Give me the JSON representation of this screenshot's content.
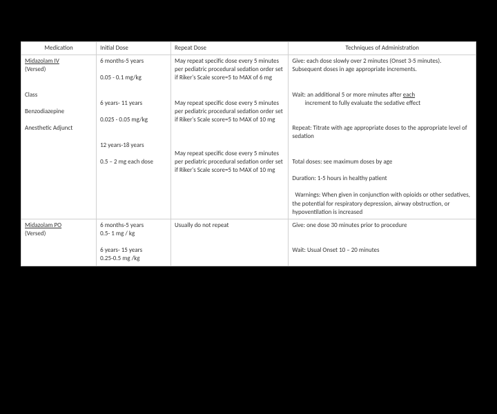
{
  "header": {
    "medication": "Medication",
    "initial_dose": "Initial Dose",
    "repeat_dose": "Repeat Dose",
    "techniques": "Techniques of Administration"
  },
  "row1": {
    "med_name": "Midazolam IV",
    "med_brand": "(Versed)",
    "class_label": "Class",
    "class_1": "Benzodiazepine",
    "class_2": "Anesthetic Adjunct",
    "dose_group1_age": "6 months-5 years",
    "dose_group1_amt": "0.05 - 0.1 mg/kg",
    "dose_group2_age": "6 years- 11 years",
    "dose_group2_amt": "0.025 - 0.05 mg/kg",
    "dose_group3_age": "12 years-18 years",
    "dose_group3_amt": "0.5 – 2 mg each dose",
    "repeat1": "May repeat specific dose every 5 minutes per pediatric procedural sedation order set if Riker's Scale score=5 to MAX of 6 mg",
    "repeat2": "May repeat specific dose every 5 minutes per pediatric procedural sedation order set if Riker's Scale score=5 to MAX of 10 mg",
    "repeat3": "May repeat specific dose every 5 minutes per pediatric procedural sedation order set if Riker's Scale score=5 to MAX of 10 mg",
    "tech_give": "Give: each dose slowly over 2 minutes (Onset 3-5 minutes). Subsequent doses in age appropriate increments.",
    "tech_wait_pre": "Wait: an additional 5 or more minutes after ",
    "tech_wait_underline": "each",
    "tech_wait_post": " increment to fully evaluate the sedative effect",
    "tech_repeat": "Repeat: Titrate with age appropriate doses to the appropriate level of sedation",
    "tech_total": "Total doses: see maximum doses by age",
    "tech_duration": "Duration: 1-5 hours in healthy patient",
    "tech_warnings": "Warnings: When given in conjunction with opioids or other sedatives, the potential for respiratory depression, airway obstruction, or hypoventilation is increased"
  },
  "row2": {
    "med_name": "Midazolam PO",
    "med_brand": "(Versed)",
    "dose_group1_age": "6 months-5 years",
    "dose_group1_amt": "0.5- 1 mg / kg",
    "dose_group2_age": "6 years- 15 years",
    "dose_group2_amt": "0.25-0.5 mg /kg",
    "repeat": "Usually do not repeat",
    "tech_give": "Give: one dose 30 minutes prior to procedure",
    "tech_wait": "Wait: Usual Onset 10 – 20 minutes"
  }
}
